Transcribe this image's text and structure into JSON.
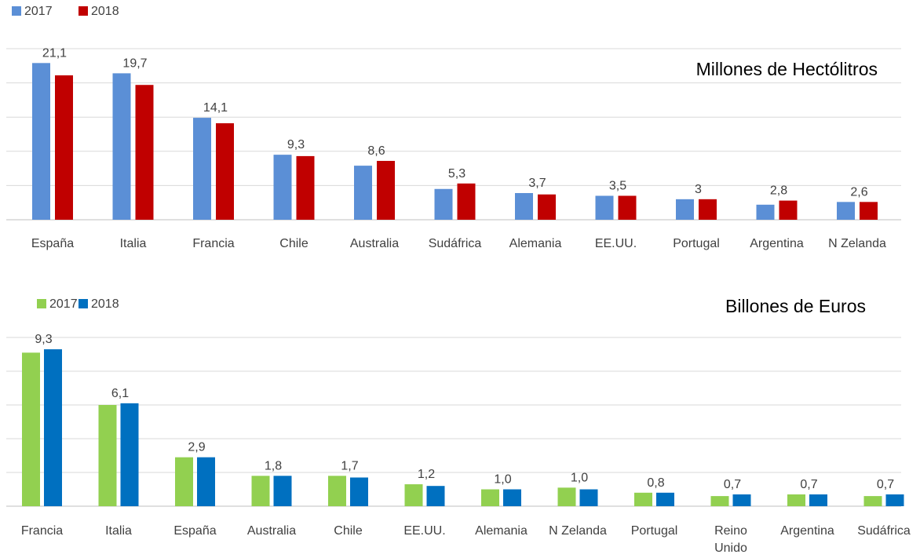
{
  "chart_data": [
    {
      "type": "bar",
      "title": "Millones de Hectólitros",
      "categories": [
        "España",
        "Italia",
        "Francia",
        "Chile",
        "Australia",
        "Sudáfrica",
        "Alemania",
        "EE.UU.",
        "Portugal",
        "Argentina",
        "N Zelanda"
      ],
      "series": [
        {
          "name": "2017",
          "color": "#5b8fd6",
          "values": [
            22.9,
            21.4,
            14.9,
            9.5,
            7.9,
            4.5,
            3.9,
            3.5,
            3.0,
            2.2,
            2.6
          ]
        },
        {
          "name": "2018",
          "color": "#c00000",
          "values": [
            21.1,
            19.7,
            14.1,
            9.3,
            8.6,
            5.3,
            3.7,
            3.5,
            3.0,
            2.8,
            2.6
          ]
        }
      ],
      "data_labels": [
        "21,1",
        "19,7",
        "14,1",
        "9,3",
        "8,6",
        "5,3",
        "3,7",
        "3,5",
        "3",
        "2,8",
        "2,6"
      ],
      "ylim": [
        0,
        25
      ],
      "grid": true,
      "legend": "top-left"
    },
    {
      "type": "bar",
      "title": "Billones de Euros",
      "categories": [
        "Francia",
        "Italia",
        "España",
        "Australia",
        "Chile",
        "EE.UU.",
        "Alemania",
        "N Zelanda",
        "Portugal",
        "Reino Unido",
        "Argentina",
        "Sudáfrica"
      ],
      "series": [
        {
          "name": "2017",
          "color": "#92d050",
          "values": [
            9.1,
            6.0,
            2.9,
            1.8,
            1.8,
            1.3,
            1.0,
            1.1,
            0.8,
            0.6,
            0.7,
            0.6
          ]
        },
        {
          "name": "2018",
          "color": "#0070c0",
          "values": [
            9.3,
            6.1,
            2.9,
            1.8,
            1.7,
            1.2,
            1.0,
            1.0,
            0.8,
            0.7,
            0.7,
            0.7
          ]
        }
      ],
      "data_labels": [
        "9,3",
        "6,1",
        "2,9",
        "1,8",
        "1,7",
        "1,2",
        "1,0",
        "1,0",
        "0,8",
        "0,7",
        "0,7",
        "0,7"
      ],
      "ylim": [
        0,
        10
      ],
      "grid": true,
      "legend": "top-left"
    }
  ]
}
